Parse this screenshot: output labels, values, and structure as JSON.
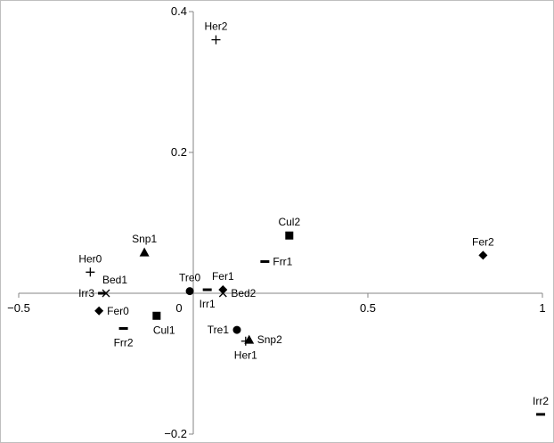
{
  "chart_data": {
    "type": "scatter",
    "xlim": [
      -0.5,
      1
    ],
    "ylim": [
      -0.2,
      0.4
    ],
    "grid": false,
    "x_ticks": [
      {
        "value": -0.5,
        "label": "−0.5"
      },
      {
        "value": 0,
        "label": "0"
      },
      {
        "value": 0.5,
        "label": "0.5"
      },
      {
        "value": 1,
        "label": "1"
      }
    ],
    "y_ticks": [
      {
        "value": -0.2,
        "label": "−0.2"
      },
      {
        "value": 0,
        "label": "0"
      },
      {
        "value": 0.2,
        "label": "0.2"
      },
      {
        "value": 0.4,
        "label": "0.4"
      }
    ],
    "points": [
      {
        "label": "Her2",
        "x": 0.065,
        "y": 0.36,
        "marker": "plus",
        "label_pos": "above"
      },
      {
        "label": "Cul2",
        "x": 0.275,
        "y": 0.082,
        "marker": "square",
        "label_pos": "above"
      },
      {
        "label": "Fer2",
        "x": 0.83,
        "y": 0.054,
        "marker": "diamond",
        "label_pos": "above"
      },
      {
        "label": "Frr1",
        "x": 0.205,
        "y": 0.045,
        "marker": "dash",
        "label_pos": "right"
      },
      {
        "label": "Snp1",
        "x": -0.14,
        "y": 0.058,
        "marker": "triangle",
        "label_pos": "above"
      },
      {
        "label": "Her0",
        "x": -0.295,
        "y": 0.03,
        "marker": "plus",
        "label_pos": "above"
      },
      {
        "label": "Bed1",
        "x": -0.25,
        "y": 0.0,
        "marker": "cross",
        "label_pos": "aboveright"
      },
      {
        "label": "Irr3",
        "x": -0.26,
        "y": 0.0,
        "marker": "dash",
        "label_pos": "left"
      },
      {
        "label": "Fer0",
        "x": -0.27,
        "y": -0.025,
        "marker": "diamond",
        "label_pos": "right"
      },
      {
        "label": "Frr2",
        "x": -0.2,
        "y": -0.05,
        "marker": "dash",
        "label_pos": "below"
      },
      {
        "label": "Cul1",
        "x": -0.105,
        "y": -0.032,
        "marker": "square",
        "label_pos": "belowright"
      },
      {
        "label": "Tre0",
        "x": -0.01,
        "y": 0.003,
        "marker": "circle",
        "label_pos": "above"
      },
      {
        "label": "Fer1",
        "x": 0.085,
        "y": 0.005,
        "marker": "diamond",
        "label_pos": "above"
      },
      {
        "label": "Bed2",
        "x": 0.085,
        "y": 0.0,
        "marker": "cross",
        "label_pos": "right"
      },
      {
        "label": "Irr1",
        "x": 0.04,
        "y": 0.005,
        "marker": "dash",
        "label_pos": "below"
      },
      {
        "label": "Tre1",
        "x": 0.125,
        "y": -0.052,
        "marker": "circle",
        "label_pos": "left"
      },
      {
        "label": "Snp2",
        "x": 0.16,
        "y": -0.066,
        "marker": "triangle",
        "label_pos": "right"
      },
      {
        "label": "Her1",
        "x": 0.15,
        "y": -0.068,
        "marker": "plus",
        "label_pos": "below"
      },
      {
        "label": "Irr2",
        "x": 0.995,
        "y": -0.172,
        "marker": "dash",
        "label_pos": "above"
      }
    ]
  }
}
